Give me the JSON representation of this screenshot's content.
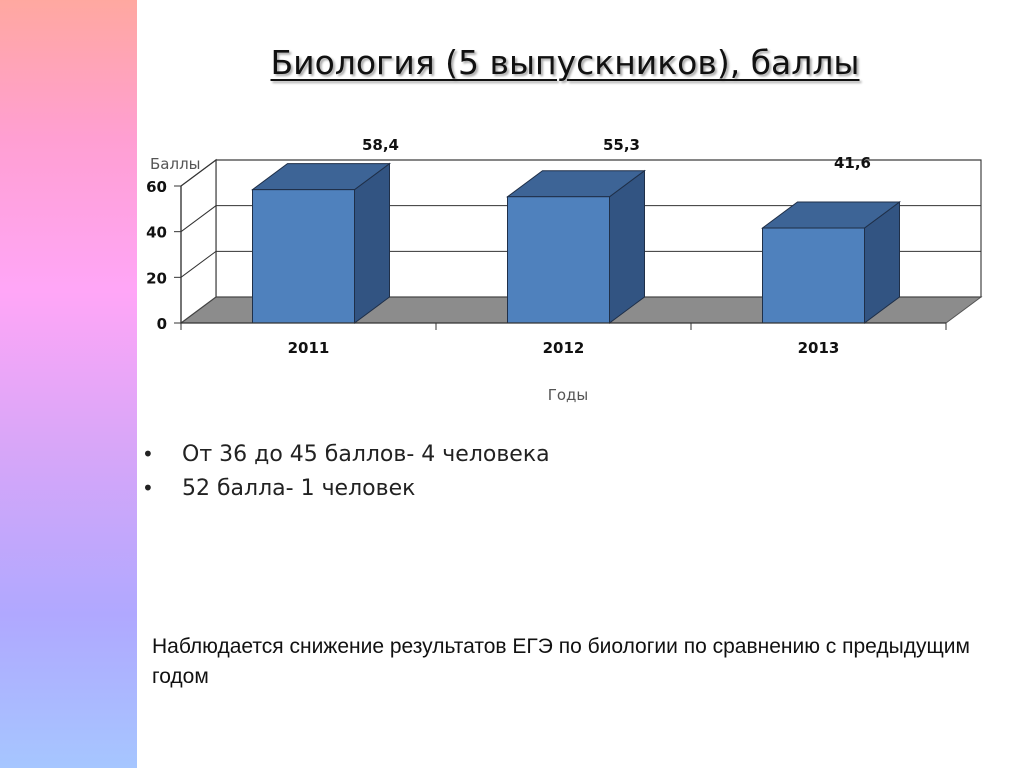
{
  "slide": {
    "title": "Биология (5 выпускников), баллы",
    "bullets": [
      "От 36 до 45 баллов- 4 человека",
      "52 балла- 1 человек"
    ],
    "note": "Наблюдается снижение результатов ЕГЭ по биологии по сравнению с предыдущим годом",
    "bullet_char": "•"
  },
  "chart_data": {
    "type": "bar",
    "categories": [
      "2011",
      "2012",
      "2013"
    ],
    "values": [
      58.4,
      55.3,
      41.6
    ],
    "data_labels": [
      "58,4",
      "55,3",
      "41,6"
    ],
    "ylabel": "Баллы",
    "xlabel": "Годы",
    "ylim": [
      0,
      60
    ],
    "yticks": [
      "0",
      "20",
      "40",
      "60"
    ],
    "grid": true,
    "style": "3d-column",
    "colors": {
      "bar_front": "#4f81bd",
      "bar_side": "#325482",
      "bar_top": "#3d6496",
      "floor": "#8c8c8c"
    }
  }
}
